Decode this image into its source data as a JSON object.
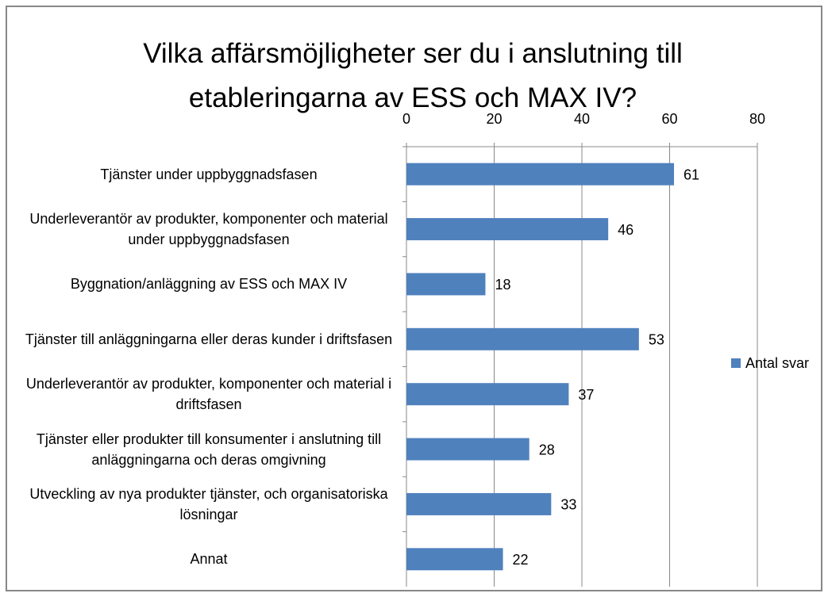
{
  "chart_data": {
    "type": "bar",
    "orientation": "horizontal",
    "title": "Vilka affärsmöjligheter ser du i anslutning till etableringarna av ESS och MAX IV?",
    "categories": [
      "Tjänster under uppbyggnadsfasen",
      "Underleverantör av produkter, komponenter och material under uppbyggnadsfasen",
      "Byggnation/anläggning av ESS och MAX IV",
      "Tjänster till anläggningarna eller deras kunder i driftsfasen",
      "Underleverantör av produkter, komponenter och material i driftsfasen",
      "Tjänster eller produkter till konsumenter i anslutning till anläggningarna och deras omgivning",
      "Utveckling av nya produkter tjänster, och organisatoriska lösningar",
      "Annat"
    ],
    "series": [
      {
        "name": "Antal svar",
        "color": "#4f81bd",
        "values": [
          61,
          46,
          18,
          53,
          37,
          28,
          33,
          22
        ]
      }
    ],
    "xlim": [
      0,
      80
    ],
    "xticks": [
      0,
      20,
      40,
      60,
      80
    ],
    "grid": true,
    "legend": "right"
  }
}
